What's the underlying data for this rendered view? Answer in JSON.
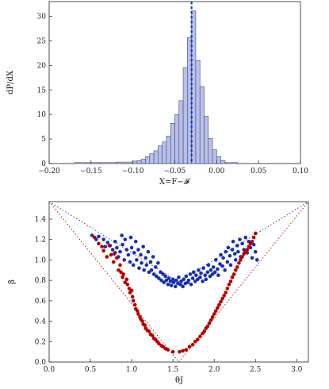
{
  "chart_data": [
    {
      "type": "bar",
      "subtype": "histogram",
      "xlabel": "X=F−𝓕",
      "ylabel": "dP/dX",
      "xlim": [
        -0.2,
        0.1
      ],
      "ylim": [
        0,
        33
      ],
      "xticks": [
        "−0.20",
        "−0.15",
        "−0.10",
        "−0.05",
        "0.00",
        "0.05",
        "0.10"
      ],
      "xtick_values": [
        -0.2,
        -0.15,
        -0.1,
        -0.05,
        0.0,
        0.05,
        0.1
      ],
      "yticks": [
        "0",
        "5",
        "10",
        "15",
        "20",
        "25",
        "30"
      ],
      "ytick_values": [
        0,
        5,
        10,
        15,
        20,
        25,
        30
      ],
      "bin_width": 0.005,
      "bins": [
        {
          "x0": -0.17,
          "x1": -0.14,
          "value": 0.2
        },
        {
          "x0": -0.14,
          "x1": -0.12,
          "value": 0.2
        },
        {
          "x0": -0.12,
          "x1": -0.1,
          "value": 0.3
        },
        {
          "x0": -0.1,
          "x1": -0.095,
          "value": 0.5
        },
        {
          "x0": -0.095,
          "x1": -0.09,
          "value": 0.6
        },
        {
          "x0": -0.09,
          "x1": -0.085,
          "value": 0.9
        },
        {
          "x0": -0.085,
          "x1": -0.08,
          "value": 1.4
        },
        {
          "x0": -0.08,
          "x1": -0.075,
          "value": 2.0
        },
        {
          "x0": -0.075,
          "x1": -0.07,
          "value": 2.6
        },
        {
          "x0": -0.07,
          "x1": -0.065,
          "value": 3.6
        },
        {
          "x0": -0.065,
          "x1": -0.06,
          "value": 4.4
        },
        {
          "x0": -0.06,
          "x1": -0.055,
          "value": 5.6
        },
        {
          "x0": -0.055,
          "x1": -0.05,
          "value": 8.2
        },
        {
          "x0": -0.05,
          "x1": -0.045,
          "value": 10.0
        },
        {
          "x0": -0.045,
          "x1": -0.04,
          "value": 12.8
        },
        {
          "x0": -0.04,
          "x1": -0.035,
          "value": 19.5
        },
        {
          "x0": -0.035,
          "x1": -0.03,
          "value": 25.7
        },
        {
          "x0": -0.03,
          "x1": -0.025,
          "value": 31.1
        },
        {
          "x0": -0.025,
          "x1": -0.02,
          "value": 21.0
        },
        {
          "x0": -0.02,
          "x1": -0.015,
          "value": 15.7
        },
        {
          "x0": -0.015,
          "x1": -0.01,
          "value": 9.6
        },
        {
          "x0": -0.01,
          "x1": -0.005,
          "value": 5.1
        },
        {
          "x0": -0.005,
          "x1": 0.0,
          "value": 2.8
        },
        {
          "x0": 0.0,
          "x1": 0.005,
          "value": 1.4
        },
        {
          "x0": 0.005,
          "x1": 0.01,
          "value": 0.6
        },
        {
          "x0": 0.01,
          "x1": 0.025,
          "value": 0.2
        }
      ],
      "vertical_line": {
        "x": -0.03,
        "style": "dashed"
      },
      "colors": {
        "bar_fill": "#b7c0ec",
        "bar_stroke": "#4a4a66",
        "line": "#1e3fb5"
      }
    },
    {
      "type": "scatter",
      "xlabel": "θJ",
      "ylabel": "β",
      "xlim": [
        0,
        3.1416
      ],
      "ylim": [
        0,
        1.5708
      ],
      "xticks": [
        "0.0",
        "0.5",
        "1.0",
        "1.5",
        "2.0",
        "2.5",
        "3.0"
      ],
      "xtick_values": [
        0,
        0.5,
        1.0,
        1.5,
        2.0,
        2.5,
        3.0
      ],
      "yticks": [
        "0.0",
        "0.2",
        "0.4",
        "0.6",
        "0.8",
        "1.0",
        "1.2",
        "1.4"
      ],
      "ytick_values": [
        0,
        0.2,
        0.4,
        0.6,
        0.8,
        1.0,
        1.2,
        1.4
      ],
      "reference_lines": [
        {
          "points": [
            [
              0,
              1.5708
            ],
            [
              1.5708,
              0
            ]
          ],
          "color": "#b00000",
          "style": "dotted"
        },
        {
          "points": [
            [
              1.5708,
              0
            ],
            [
              3.1416,
              1.5708
            ]
          ],
          "color": "#b00000",
          "style": "dotted"
        },
        {
          "points": [
            [
              0,
              1.5708
            ],
            [
              1.5708,
              0.7854
            ]
          ],
          "color": "#1f2fa6",
          "style": "dotted"
        },
        {
          "points": [
            [
              1.5708,
              0.7854
            ],
            [
              3.1416,
              1.5708
            ]
          ],
          "color": "#1f2fa6",
          "style": "dotted"
        }
      ],
      "series": [
        {
          "color": "#1a2fb0",
          "points": [
            [
              0.52,
              1.24
            ],
            [
              0.57,
              1.2
            ],
            [
              0.6,
              1.23
            ],
            [
              0.66,
              1.2
            ],
            [
              0.68,
              1.13
            ],
            [
              0.71,
              1.17
            ],
            [
              0.74,
              1.14
            ],
            [
              0.77,
              1.1
            ],
            [
              0.79,
              1.06
            ],
            [
              0.8,
              1.18
            ],
            [
              0.82,
              1.12
            ],
            [
              0.84,
              1.03
            ],
            [
              0.86,
              1.08
            ],
            [
              0.88,
              1.24
            ],
            [
              0.89,
              1.15
            ],
            [
              0.91,
              1.0
            ],
            [
              0.92,
              1.2
            ],
            [
              0.94,
              1.1
            ],
            [
              0.96,
              1.05
            ],
            [
              0.98,
              0.98
            ],
            [
              0.99,
              1.22
            ],
            [
              1.0,
              1.12
            ],
            [
              1.02,
              0.95
            ],
            [
              1.03,
              1.07
            ],
            [
              1.05,
              1.18
            ],
            [
              1.06,
              1.0
            ],
            [
              1.08,
              1.1
            ],
            [
              1.09,
              0.92
            ],
            [
              1.11,
              1.05
            ],
            [
              1.12,
              0.97
            ],
            [
              1.14,
              1.13
            ],
            [
              1.15,
              0.9
            ],
            [
              1.17,
              1.02
            ],
            [
              1.18,
              0.95
            ],
            [
              1.2,
              1.08
            ],
            [
              1.21,
              0.88
            ],
            [
              1.23,
              0.98
            ],
            [
              1.24,
              0.9
            ],
            [
              1.26,
              1.03
            ],
            [
              1.27,
              0.86
            ],
            [
              1.29,
              0.93
            ],
            [
              1.3,
              0.84
            ],
            [
              1.32,
              0.97
            ],
            [
              1.33,
              0.82
            ],
            [
              1.35,
              0.88
            ],
            [
              1.36,
              0.8
            ],
            [
              1.38,
              0.86
            ],
            [
              1.39,
              0.78
            ],
            [
              1.41,
              0.84
            ],
            [
              1.42,
              0.8
            ],
            [
              1.44,
              0.76
            ],
            [
              1.45,
              0.82
            ],
            [
              1.47,
              0.79
            ],
            [
              1.48,
              0.75
            ],
            [
              1.5,
              0.81
            ],
            [
              1.51,
              0.78
            ],
            [
              1.53,
              0.74
            ],
            [
              1.54,
              0.8
            ],
            [
              1.56,
              0.77
            ],
            [
              1.57,
              0.83
            ],
            [
              1.59,
              0.76
            ],
            [
              1.6,
              0.79
            ],
            [
              1.62,
              0.74
            ],
            [
              1.63,
              0.81
            ],
            [
              1.65,
              0.77
            ],
            [
              1.66,
              0.84
            ],
            [
              1.68,
              0.78
            ],
            [
              1.69,
              0.8
            ],
            [
              1.71,
              0.86
            ],
            [
              1.72,
              0.76
            ],
            [
              1.74,
              0.82
            ],
            [
              1.75,
              0.88
            ],
            [
              1.77,
              0.79
            ],
            [
              1.78,
              0.85
            ],
            [
              1.8,
              0.81
            ],
            [
              1.81,
              0.9
            ],
            [
              1.83,
              0.83
            ],
            [
              1.84,
              0.87
            ],
            [
              1.86,
              0.79
            ],
            [
              1.87,
              0.92
            ],
            [
              1.89,
              0.85
            ],
            [
              1.9,
              0.81
            ],
            [
              1.92,
              0.88
            ],
            [
              1.93,
              0.95
            ],
            [
              1.95,
              0.84
            ],
            [
              1.96,
              0.9
            ],
            [
              1.98,
              0.86
            ],
            [
              1.99,
              0.93
            ],
            [
              2.01,
              0.88
            ],
            [
              2.02,
              1.0
            ],
            [
              2.04,
              0.91
            ],
            [
              2.05,
              0.85
            ],
            [
              2.07,
              0.96
            ],
            [
              2.08,
              1.05
            ],
            [
              2.1,
              0.94
            ],
            [
              2.11,
              1.02
            ],
            [
              2.13,
              0.9
            ],
            [
              2.14,
              1.08
            ],
            [
              2.16,
              0.98
            ],
            [
              2.17,
              1.12
            ],
            [
              2.19,
              1.04
            ],
            [
              2.2,
              0.95
            ],
            [
              2.22,
              1.1
            ],
            [
              2.23,
              1.18
            ],
            [
              2.25,
              1.06
            ],
            [
              2.26,
              1.0
            ],
            [
              2.28,
              1.14
            ],
            [
              2.29,
              1.08
            ],
            [
              2.31,
              1.2
            ],
            [
              2.32,
              1.03
            ],
            [
              2.34,
              1.16
            ],
            [
              2.36,
              1.1
            ],
            [
              2.38,
              1.22
            ],
            [
              2.4,
              1.07
            ],
            [
              2.42,
              1.18
            ],
            [
              2.44,
              1.12
            ],
            [
              2.46,
              1.02
            ],
            [
              2.48,
              1.15
            ],
            [
              2.5,
              1.08
            ],
            [
              2.52,
              1.0
            ]
          ]
        },
        {
          "color": "#b80000",
          "points": [
            [
              0.55,
              1.22
            ],
            [
              0.6,
              1.16
            ],
            [
              0.64,
              1.13
            ],
            [
              0.66,
              1.09
            ],
            [
              0.7,
              1.03
            ],
            [
              0.73,
              1.14
            ],
            [
              0.75,
              1.05
            ],
            [
              0.78,
              0.98
            ],
            [
              0.8,
              1.07
            ],
            [
              0.82,
              1.02
            ],
            [
              0.84,
              0.9
            ],
            [
              0.86,
              0.95
            ],
            [
              0.87,
              0.88
            ],
            [
              0.89,
              0.83
            ],
            [
              0.9,
              0.86
            ],
            [
              0.92,
              0.78
            ],
            [
              0.94,
              0.81
            ],
            [
              0.95,
              0.76
            ],
            [
              0.97,
              0.72
            ],
            [
              0.98,
              0.68
            ],
            [
              1.0,
              0.7
            ],
            [
              1.01,
              0.64
            ],
            [
              1.02,
              0.6
            ],
            [
              1.04,
              0.56
            ],
            [
              1.05,
              0.52
            ],
            [
              1.07,
              0.5
            ],
            [
              1.08,
              0.47
            ],
            [
              1.1,
              0.44
            ],
            [
              1.11,
              0.42
            ],
            [
              1.13,
              0.4
            ],
            [
              1.14,
              0.37
            ],
            [
              1.16,
              0.36
            ],
            [
              1.17,
              0.33
            ],
            [
              1.19,
              0.31
            ],
            [
              1.21,
              0.3
            ],
            [
              1.23,
              0.27
            ],
            [
              1.25,
              0.26
            ],
            [
              1.27,
              0.23
            ],
            [
              1.29,
              0.22
            ],
            [
              1.31,
              0.2
            ],
            [
              1.33,
              0.18
            ],
            [
              1.36,
              0.16
            ],
            [
              1.38,
              0.15
            ],
            [
              1.41,
              0.13
            ],
            [
              1.44,
              0.12
            ],
            [
              1.5,
              0.1
            ],
            [
              1.58,
              0.1
            ],
            [
              1.62,
              0.11
            ],
            [
              1.66,
              0.12
            ],
            [
              1.7,
              0.15
            ],
            [
              1.74,
              0.17
            ],
            [
              1.77,
              0.2
            ],
            [
              1.8,
              0.22
            ],
            [
              1.83,
              0.25
            ],
            [
              1.86,
              0.28
            ],
            [
              1.88,
              0.3
            ],
            [
              1.9,
              0.33
            ],
            [
              1.92,
              0.35
            ],
            [
              1.94,
              0.38
            ],
            [
              1.96,
              0.41
            ],
            [
              1.98,
              0.44
            ],
            [
              2.0,
              0.47
            ],
            [
              2.02,
              0.5
            ],
            [
              2.04,
              0.53
            ],
            [
              2.06,
              0.56
            ],
            [
              2.08,
              0.59
            ],
            [
              2.1,
              0.62
            ],
            [
              2.12,
              0.65
            ],
            [
              2.14,
              0.68
            ],
            [
              2.16,
              0.72
            ],
            [
              2.18,
              0.76
            ],
            [
              2.2,
              0.79
            ],
            [
              2.22,
              0.83
            ],
            [
              2.24,
              0.86
            ],
            [
              2.26,
              0.9
            ],
            [
              2.28,
              0.93
            ],
            [
              2.3,
              0.97
            ],
            [
              2.32,
              1.0
            ],
            [
              2.34,
              1.03
            ],
            [
              2.36,
              1.06
            ],
            [
              2.38,
              1.08
            ],
            [
              2.4,
              1.1
            ],
            [
              2.42,
              1.13
            ],
            [
              2.44,
              1.16
            ],
            [
              2.46,
              1.18
            ],
            [
              2.48,
              1.22
            ],
            [
              2.5,
              1.26
            ]
          ]
        }
      ]
    }
  ]
}
